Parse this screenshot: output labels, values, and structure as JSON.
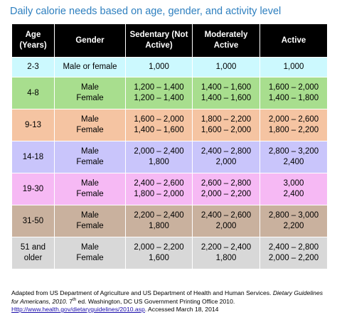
{
  "title": "Daily calorie needs based on age, gender, and activity level",
  "table": {
    "headers": [
      [
        "Age",
        "(Years)"
      ],
      [
        "Gender"
      ],
      [
        "Sedentary",
        "(Not Active)"
      ],
      [
        "Moderately",
        "Active"
      ],
      [
        "Active"
      ]
    ],
    "rows": [
      {
        "color": "#ccf9fe",
        "age": [
          "2-3"
        ],
        "gender": [
          "Male or female"
        ],
        "sedentary": [
          "1,000"
        ],
        "moderate": [
          "1,000"
        ],
        "active": [
          "1,000"
        ]
      },
      {
        "color": "#a8de8e",
        "age": [
          "4-8"
        ],
        "gender": [
          "Male",
          "Female"
        ],
        "sedentary": [
          "1,200 – 1,400",
          "1,200 – 1,400"
        ],
        "moderate": [
          "1,400 – 1,600",
          "1,400 – 1,600"
        ],
        "active": [
          "1,600 – 2,000",
          "1,400 – 1,800"
        ]
      },
      {
        "color": "#f5c4a2",
        "age": [
          "9-13"
        ],
        "gender": [
          "Male",
          "Female"
        ],
        "sedentary": [
          "1,600 – 2,000",
          "1,400 – 1,600"
        ],
        "moderate": [
          "1,800 – 2,200",
          "1,600 – 2,000"
        ],
        "active": [
          "2,000 – 2,600",
          "1,800 – 2,200"
        ]
      },
      {
        "color": "#c9c5fb",
        "age": [
          "14-18"
        ],
        "gender": [
          "Male",
          "Female"
        ],
        "sedentary": [
          "2,000 – 2,400",
          "1,800"
        ],
        "moderate": [
          "2,400 – 2,800",
          "2,000"
        ],
        "active": [
          "2,800 – 3,200",
          "2,400"
        ]
      },
      {
        "color": "#f6b9f4",
        "age": [
          "19-30"
        ],
        "gender": [
          "Male",
          "Female"
        ],
        "sedentary": [
          "2,400 – 2,600",
          "1,800 – 2,000"
        ],
        "moderate": [
          "2,600 – 2,800",
          "2,000 – 2,200"
        ],
        "active": [
          "3,000",
          "2,400"
        ]
      },
      {
        "color": "#c9b19e",
        "age": [
          "31-50"
        ],
        "gender": [
          "Male",
          "Female"
        ],
        "sedentary": [
          "2,200 – 2,400",
          "1,800"
        ],
        "moderate": [
          "2,400 – 2,600",
          "2,000"
        ],
        "active": [
          "2,800 – 3,000",
          "2,200"
        ]
      },
      {
        "color": "#d8d8d8",
        "age": [
          "51 and",
          "older"
        ],
        "gender": [
          "Male",
          "Female"
        ],
        "sedentary": [
          "2,000 – 2,200",
          "1,600"
        ],
        "moderate": [
          "2,200 – 2,400",
          "1,800"
        ],
        "active": [
          "2,400 – 2,800",
          "2,000 – 2,200"
        ]
      }
    ]
  },
  "footnote": {
    "text1": "Adapted from US Department of Agriculture and US Department of Health and Human Services. ",
    "italic": "Dietary Guidelines for Americans, 2010.",
    "text2": " 7",
    "sup": "th",
    "text3": " ed. Washington, DC US Government Printing Office 2010.",
    "link": "Http://www.health.gov/dietaryguidelines/2010.asp",
    "text4": ". Accessed March 18, 2014"
  }
}
